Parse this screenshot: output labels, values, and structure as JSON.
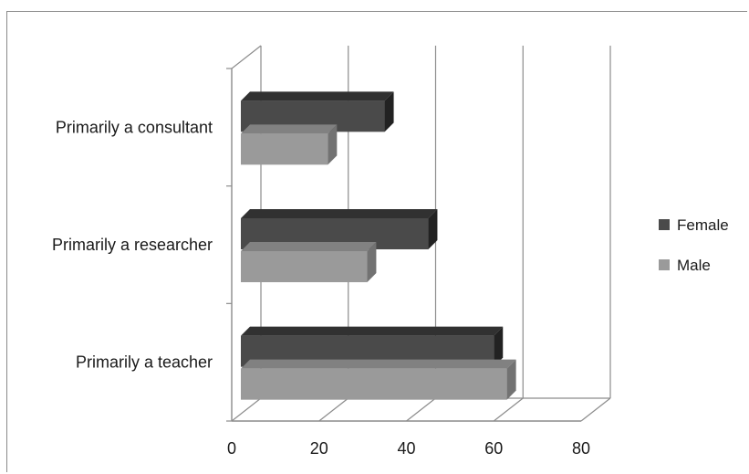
{
  "chart_data": {
    "type": "bar",
    "orientation": "horizontal",
    "style": "3d-clustered",
    "categories": [
      "Primarily a consultant",
      "Primarily a researcher",
      "Primarily a teacher"
    ],
    "series": [
      {
        "name": "Female",
        "values": [
          35,
          45,
          60
        ],
        "color": "#4a4a4a"
      },
      {
        "name": "Male",
        "values": [
          22,
          31,
          63
        ],
        "color": "#9a9a9a"
      }
    ],
    "xlim": [
      0,
      80
    ],
    "xticks": [
      "0",
      "20",
      "40",
      "60",
      "80"
    ],
    "grid": true,
    "legend_position": "right"
  }
}
